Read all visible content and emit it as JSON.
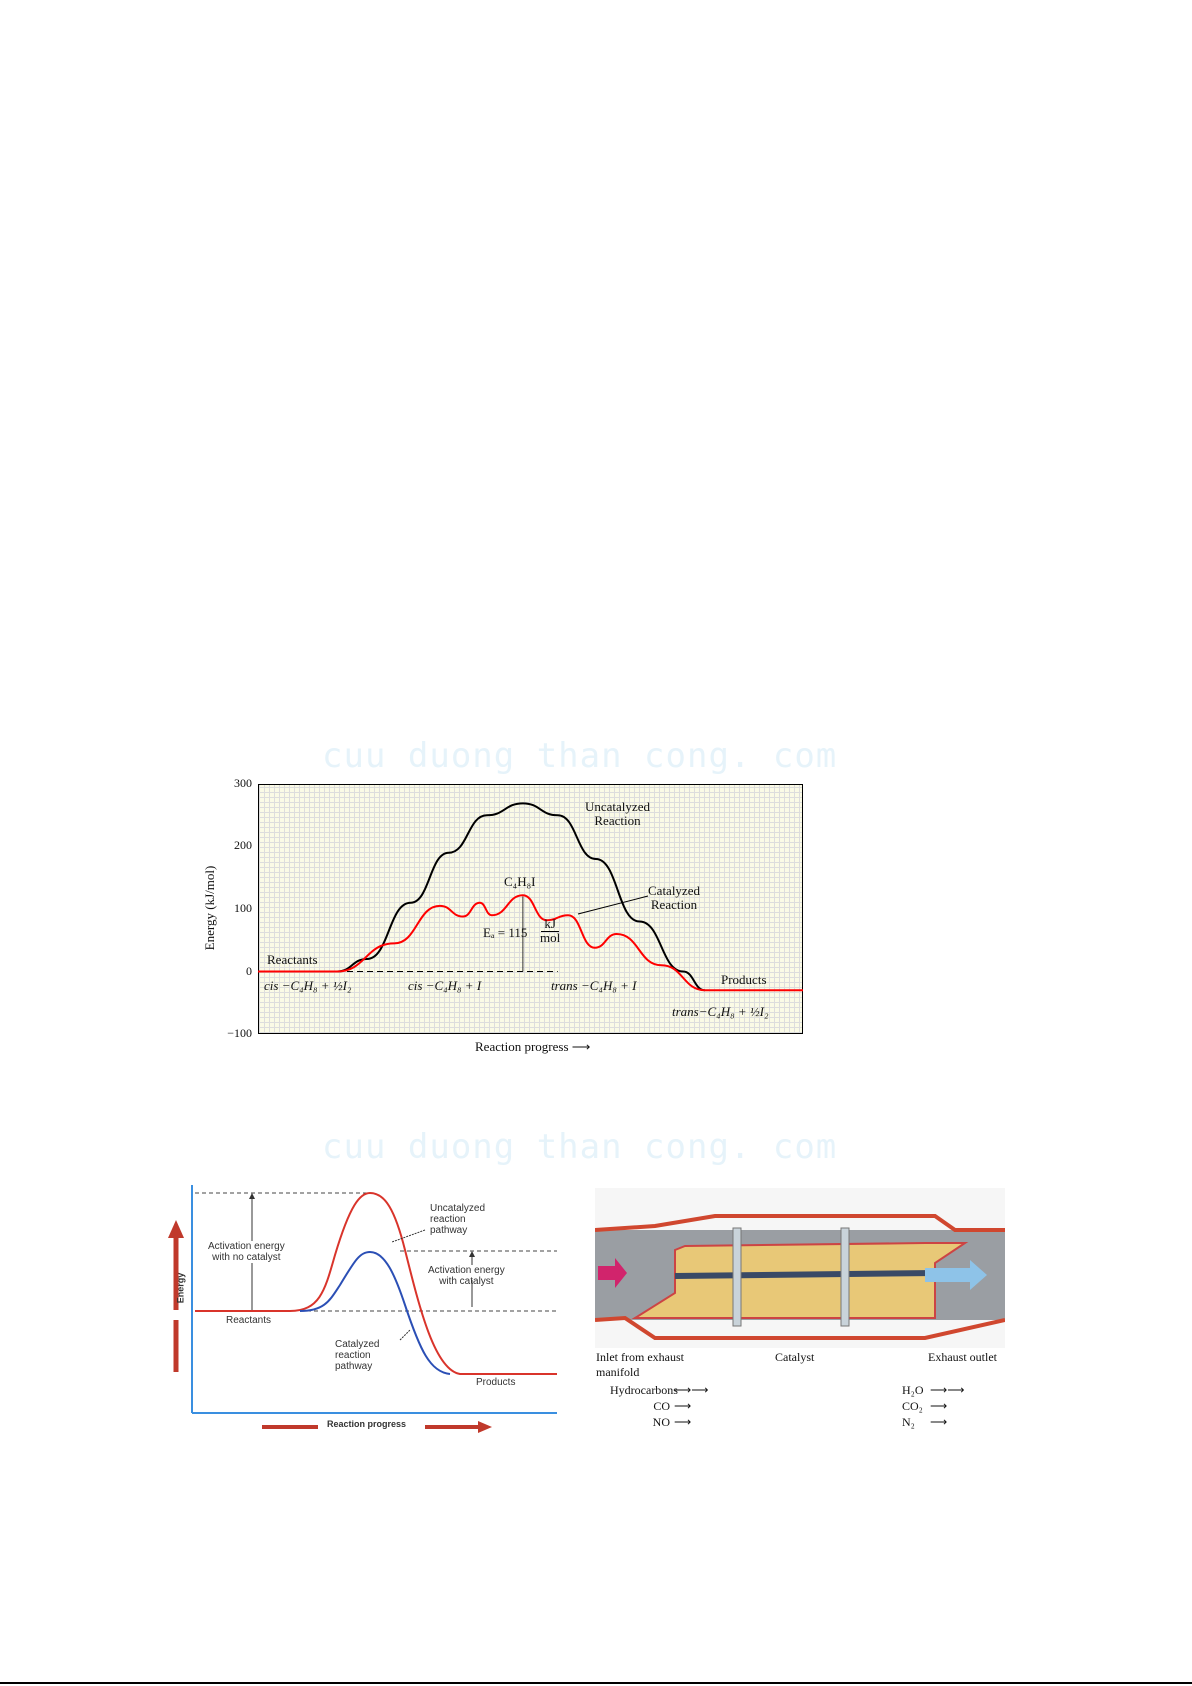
{
  "watermark": "cuu duong than cong. com",
  "chart_data": [
    {
      "type": "line",
      "ylabel": "Energy (kJ/mol)",
      "xlabel": "Reaction progress",
      "ylim": [
        -100,
        300
      ],
      "yticks": [
        "300",
        "200",
        "100",
        "0",
        "−100"
      ],
      "grid": true,
      "series": [
        {
          "name": "Uncatalyzed Reaction",
          "color": "#000000",
          "x": [
            0,
            0.145,
            0.2,
            0.28,
            0.35,
            0.42,
            0.486,
            0.55,
            0.62,
            0.7,
            0.78,
            0.82
          ],
          "y": [
            0,
            0,
            20,
            110,
            190,
            250,
            269,
            250,
            180,
            80,
            0,
            -30
          ]
        },
        {
          "name": "Catalyzed Reaction",
          "color": "#ff0000",
          "x": [
            0,
            0.145,
            0.25,
            0.334,
            0.376,
            0.407,
            0.429,
            0.486,
            0.53,
            0.569,
            0.618,
            0.658,
            0.74,
            0.82,
            1
          ],
          "y": [
            0,
            0,
            45,
            105,
            88,
            110,
            90,
            122,
            82,
            90,
            38,
            60,
            10,
            -30,
            -30
          ]
        }
      ],
      "annotations": {
        "uncatalyzed_1": "Uncatalyzed",
        "uncatalyzed_2": "Reaction",
        "catalyzed_1": "Catalyzed",
        "catalyzed_2": "Reaction",
        "intermediate": "C₄H₈I",
        "ea_label": "Eₐ = 115",
        "ea_num": "kJ",
        "ea_den": "mol",
        "reactants": "Reactants",
        "products": "Products",
        "state_1": "cis −C₄H₈ + ½I₂",
        "state_2": "cis −C₄H₈ + I",
        "state_3": "trans −C₄H₈ + I",
        "state_4": "trans−C₄H₈ + ½I₂"
      }
    }
  ],
  "diagram2": {
    "energy": "Energy",
    "progress": "Reaction progress",
    "act_no_cat_1": "Activation energy",
    "act_no_cat_2": "with no catalyst",
    "act_cat_1": "Activation energy",
    "act_cat_2": "with catalyst",
    "uncat_1": "Uncatalyzed",
    "uncat_2": "reaction",
    "uncat_3": "pathway",
    "cat_1": "Catalyzed",
    "cat_2": "reaction",
    "cat_3": "pathway",
    "reactants": "Reactants",
    "products": "Products",
    "colors": {
      "uncatalyzed": "#d9342b",
      "catalyzed": "#2b4fb5",
      "axis": "#3a8fe0"
    }
  },
  "converter": {
    "inlet_1": "Inlet from exhaust",
    "inlet_2": "manifold",
    "catalyst": "Catalyst",
    "outlet": "Exhaust outlet",
    "inputs": [
      "Hydrocarbons",
      "CO",
      "NO"
    ],
    "outputs": [
      "H₂O",
      "CO₂",
      "N₂"
    ]
  }
}
